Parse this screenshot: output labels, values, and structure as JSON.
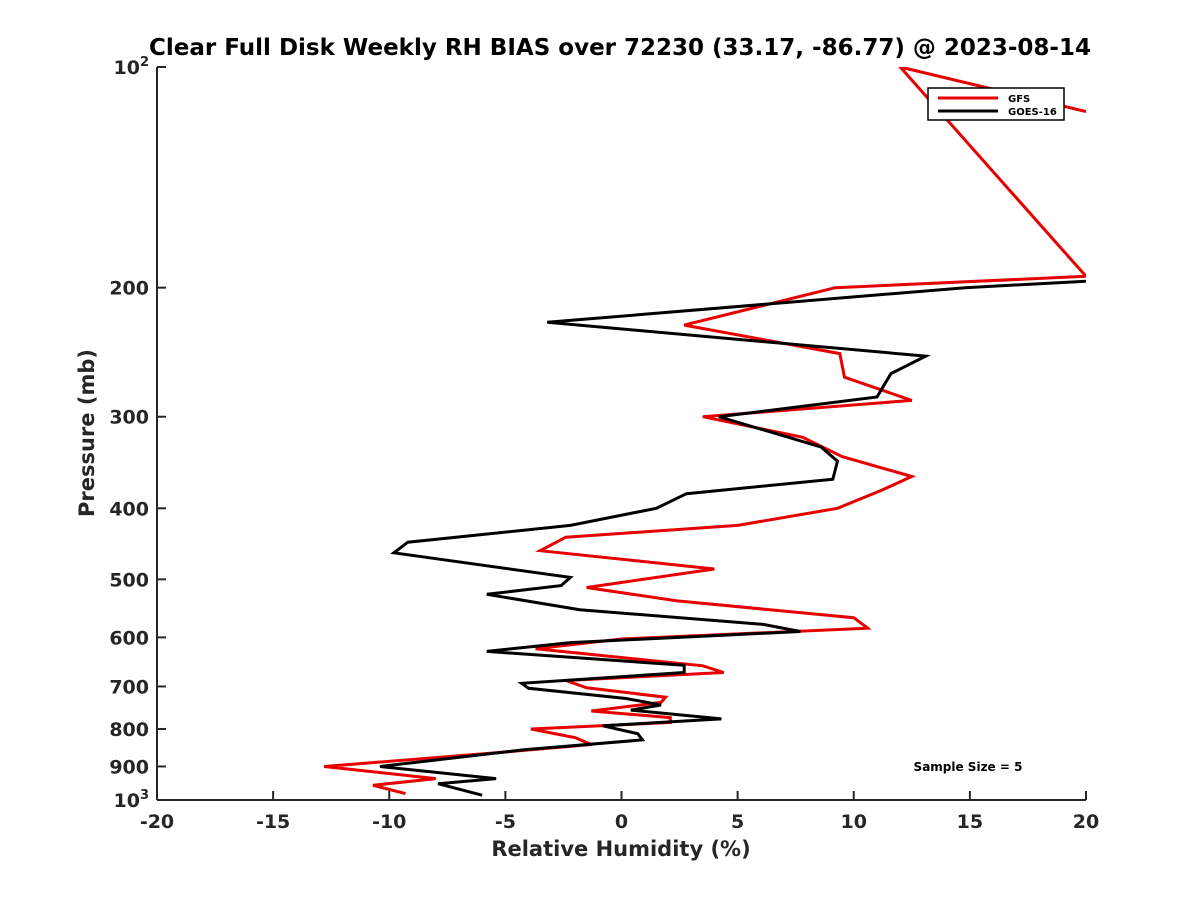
{
  "chart_data": {
    "type": "line",
    "title": "Clear Full Disk Weekly RH BIAS over 72230 (33.17, -86.77) @ 2023-08-14",
    "xlabel": "Relative Humidity (%)",
    "ylabel": "Pressure (mb)",
    "xlim": [
      -20,
      20
    ],
    "ylim": [
      100,
      1000
    ],
    "y_scale": "log",
    "y_reversed": true,
    "x_ticks": [
      -20,
      -15,
      -10,
      -5,
      0,
      5,
      10,
      15,
      20
    ],
    "x_tick_labels": [
      "-20",
      "-15",
      "-10",
      "-5",
      "0",
      "5",
      "10",
      "15",
      "20"
    ],
    "y_ticks": [
      {
        "value": 100,
        "base": "10",
        "exp": "2"
      },
      {
        "value": 200,
        "label": "200"
      },
      {
        "value": 300,
        "label": "300"
      },
      {
        "value": 400,
        "label": "400"
      },
      {
        "value": 500,
        "label": "500"
      },
      {
        "value": 600,
        "label": "600"
      },
      {
        "value": 700,
        "label": "700"
      },
      {
        "value": 800,
        "label": "800"
      },
      {
        "value": 900,
        "label": "900"
      },
      {
        "value": 1000,
        "base": "10",
        "exp": "3"
      }
    ],
    "legend": {
      "position": "top-right",
      "entries": [
        "GFS",
        "GOES-16"
      ]
    },
    "annotation": "Sample Size = 5",
    "series": [
      {
        "name": "GFS",
        "color": "#e60000",
        "points": [
          [
            20.0,
            115
          ],
          [
            12.0,
            100
          ],
          [
            20.0,
            193
          ],
          [
            9.2,
            200
          ],
          [
            2.7,
            225
          ],
          [
            9.4,
            246
          ],
          [
            9.6,
            265
          ],
          [
            12.5,
            285
          ],
          [
            3.5,
            300
          ],
          [
            7.8,
            320
          ],
          [
            9.5,
            340
          ],
          [
            12.5,
            362
          ],
          [
            11.2,
            378
          ],
          [
            9.3,
            400
          ],
          [
            5.0,
            422
          ],
          [
            -2.4,
            438
          ],
          [
            -3.5,
            457
          ],
          [
            4.0,
            484
          ],
          [
            -1.5,
            513
          ],
          [
            2.4,
            535
          ],
          [
            10.0,
            564
          ],
          [
            10.6,
            583
          ],
          [
            0.0,
            603
          ],
          [
            -3.7,
            622
          ],
          [
            3.5,
            656
          ],
          [
            4.4,
            670
          ],
          [
            -2.4,
            687
          ],
          [
            -1.5,
            703
          ],
          [
            1.9,
            724
          ],
          [
            1.7,
            736
          ],
          [
            -1.3,
            756
          ],
          [
            2.1,
            772
          ],
          [
            2.1,
            784
          ],
          [
            -3.9,
            800
          ],
          [
            -2.0,
            822
          ],
          [
            -1.3,
            840
          ],
          [
            -5.0,
            860
          ],
          [
            -12.8,
            900
          ],
          [
            -8.0,
            935
          ],
          [
            -10.7,
            955
          ],
          [
            -9.3,
            980
          ]
        ]
      },
      {
        "name": "GOES-16",
        "color": "#000000",
        "points": [
          [
            20.0,
            196
          ],
          [
            14.8,
            200
          ],
          [
            -3.2,
            223
          ],
          [
            13.1,
            248
          ],
          [
            11.6,
            262
          ],
          [
            11.0,
            282
          ],
          [
            4.2,
            300
          ],
          [
            8.6,
            330
          ],
          [
            9.3,
            345
          ],
          [
            9.1,
            365
          ],
          [
            2.8,
            382
          ],
          [
            1.5,
            400
          ],
          [
            -2.2,
            422
          ],
          [
            -9.2,
            445
          ],
          [
            -9.8,
            460
          ],
          [
            -2.2,
            497
          ],
          [
            -2.6,
            510
          ],
          [
            -5.8,
            524
          ],
          [
            -1.8,
            550
          ],
          [
            6.1,
            576
          ],
          [
            7.7,
            589
          ],
          [
            -2.2,
            610
          ],
          [
            -5.8,
            627
          ],
          [
            2.7,
            655
          ],
          [
            2.7,
            670
          ],
          [
            -4.3,
            693
          ],
          [
            -4.0,
            704
          ],
          [
            0.2,
            727
          ],
          [
            1.7,
            742
          ],
          [
            0.4,
            754
          ],
          [
            4.3,
            775
          ],
          [
            -0.8,
            792
          ],
          [
            0.7,
            812
          ],
          [
            0.9,
            828
          ],
          [
            -4.2,
            854
          ],
          [
            -10.4,
            900
          ],
          [
            -5.4,
            935
          ],
          [
            -7.9,
            950
          ],
          [
            -6.0,
            985
          ]
        ]
      }
    ]
  }
}
